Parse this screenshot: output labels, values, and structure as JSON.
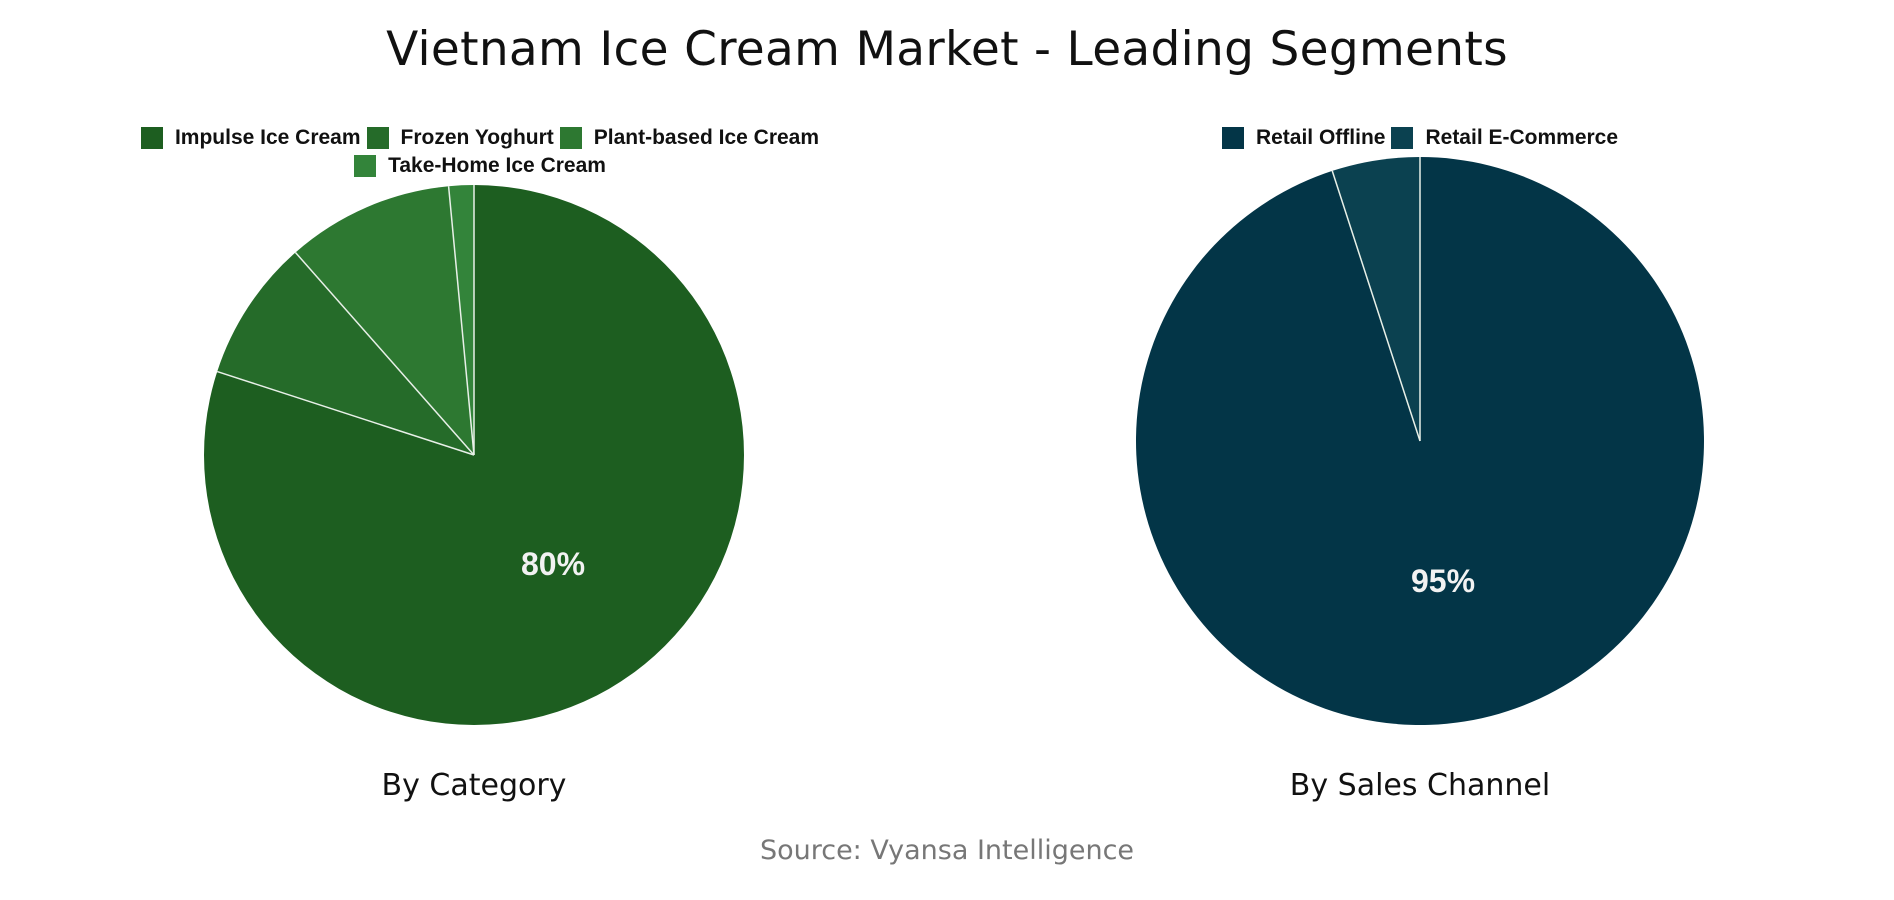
{
  "title": "Vietnam Ice Cream Market - Leading Segments",
  "source": "Source: Vyansa Intelligence",
  "charts": [
    {
      "subtitle": "By Category",
      "legend": [
        {
          "label": "Impulse Ice Cream",
          "color": "#1d5e20"
        },
        {
          "label": "Frozen Yoghurt",
          "color": "#256b29"
        },
        {
          "label": "Plant-based Ice Cream",
          "color": "#2d7831"
        },
        {
          "label": "Take-Home Ice Cream",
          "color": "#33843a"
        }
      ],
      "label_visible": "80%"
    },
    {
      "subtitle": "By Sales Channel",
      "legend": [
        {
          "label": "Retail Offline",
          "color": "#033547"
        },
        {
          "label": "Retail E-Commerce",
          "color": "#0b4150"
        }
      ],
      "label_visible": "95%"
    }
  ],
  "chart_data": [
    {
      "type": "pie",
      "title": "By Category",
      "categories": [
        "Impulse Ice Cream",
        "Frozen Yoghurt",
        "Plant-based Ice Cream",
        "Take-Home Ice Cream"
      ],
      "values": [
        80,
        8.5,
        10,
        1.5
      ],
      "colors": [
        "#1d5e20",
        "#256b29",
        "#2d7831",
        "#33843a"
      ],
      "data_labels": [
        "80%",
        "",
        "",
        ""
      ],
      "legend_position": "top",
      "start_angle": 0,
      "direction": "clockwise"
    },
    {
      "type": "pie",
      "title": "By Sales Channel",
      "categories": [
        "Retail Offline",
        "Retail E-Commerce"
      ],
      "values": [
        95,
        5
      ],
      "colors": [
        "#033547",
        "#0b4150"
      ],
      "data_labels": [
        "95%",
        ""
      ],
      "legend_position": "top",
      "start_angle": 0,
      "direction": "clockwise"
    }
  ]
}
